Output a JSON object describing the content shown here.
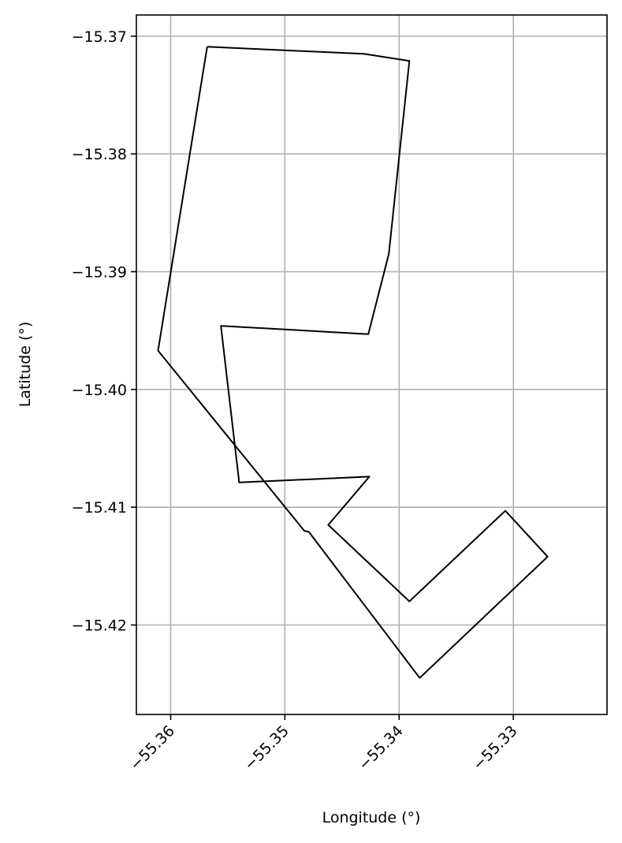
{
  "chart_data": {
    "type": "line",
    "xlabel": "Longitude (°)",
    "ylabel": "Latitude (°)",
    "xlim": [
      -55.363,
      -55.3218
    ],
    "ylim": [
      -15.4276,
      -15.3682
    ],
    "grid": true,
    "xticks": [
      -55.36,
      -55.35,
      -55.34,
      -55.33
    ],
    "xtick_labels": [
      "−55.36",
      "−55.35",
      "−55.34",
      "−55.33"
    ],
    "yticks": [
      -15.37,
      -15.38,
      -15.39,
      -15.4,
      -15.41,
      -15.42
    ],
    "ytick_labels": [
      "−15.37",
      "−15.38",
      "−15.39",
      "−15.40",
      "−15.41",
      "−15.42"
    ],
    "series": [
      {
        "color": "#000000",
        "x": [
          -55.3568,
          -55.3431,
          -55.3391,
          -55.3409,
          -55.3427,
          -55.3556,
          -55.354,
          -55.3426,
          -55.3462,
          -55.3391,
          -55.3307,
          -55.327,
          -55.3382,
          -55.3479,
          -55.3483,
          -55.3611,
          -55.3568
        ],
        "y": [
          -15.3709,
          -15.3715,
          -15.3721,
          -15.3885,
          -15.3953,
          -15.3946,
          -15.4079,
          -15.4074,
          -15.4115,
          -15.418,
          -15.4103,
          -15.4142,
          -15.4245,
          -15.4121,
          -15.412,
          -15.3967,
          -15.3709
        ]
      }
    ]
  }
}
